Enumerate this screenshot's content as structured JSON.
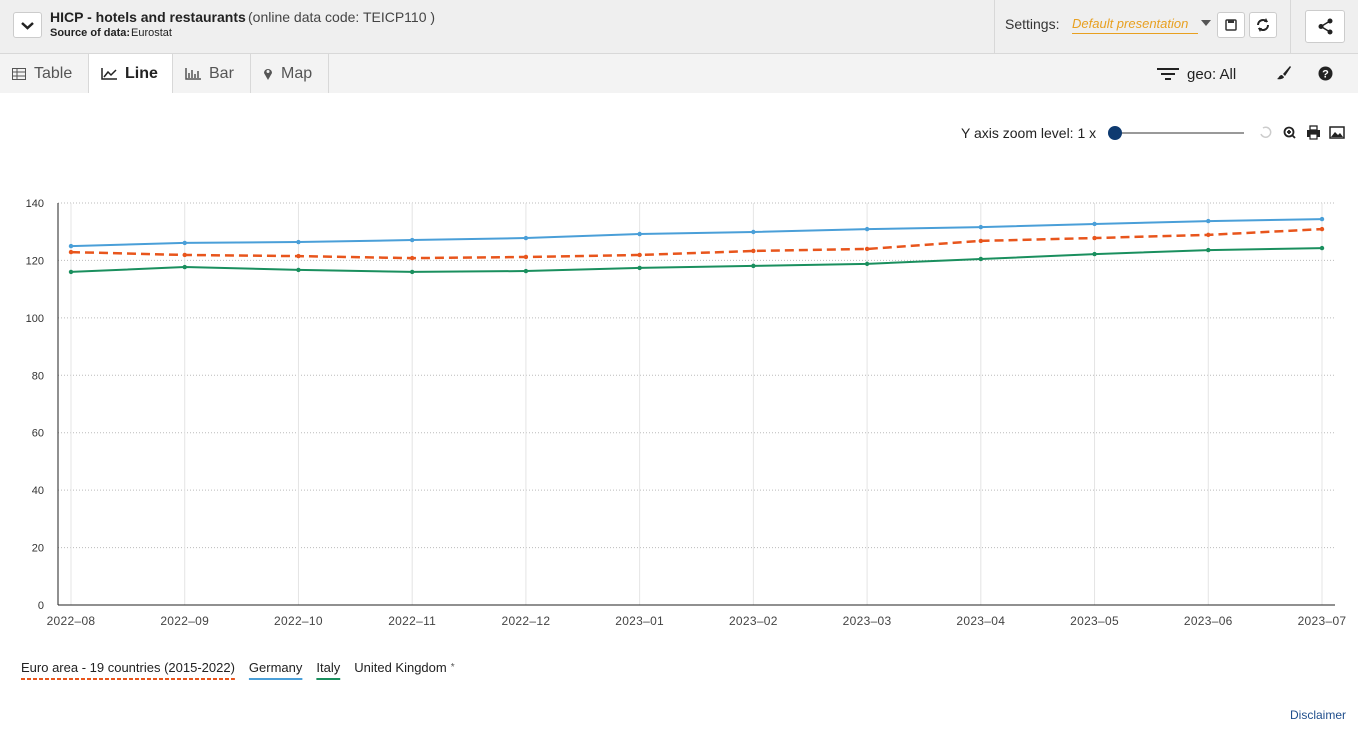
{
  "header": {
    "title": "HICP - hotels and restaurants",
    "code": "(online data code: TEICP110 )",
    "source_label": "Source of data:",
    "source": "Eurostat",
    "settings_label": "Settings:",
    "presentation": "Default presentation"
  },
  "tabs": [
    "Table",
    "Line",
    "Bar",
    "Map"
  ],
  "toolbar": {
    "filter": "geo: All",
    "zoom_label": "Y axis zoom level: 1 x"
  },
  "footer": {
    "disclaimer": "Disclaimer"
  },
  "chart_data": {
    "type": "line",
    "categories": [
      "2022–08",
      "2022–09",
      "2022–10",
      "2022–11",
      "2022–12",
      "2023–01",
      "2023–02",
      "2023–03",
      "2023–04",
      "2023–05",
      "2023–06",
      "2023–07"
    ],
    "series": [
      {
        "name": "Euro area - 19 countries (2015-2022)",
        "color": "#e8551c",
        "dashed": true,
        "values": [
          122.9,
          121.9,
          121.5,
          120.8,
          121.2,
          121.9,
          123.3,
          124.0,
          126.8,
          127.8,
          128.9,
          130.9
        ]
      },
      {
        "name": "Germany",
        "color": "#4a9fd8",
        "values": [
          125.0,
          126.1,
          126.4,
          127.1,
          127.8,
          129.2,
          129.9,
          130.9,
          131.6,
          132.7,
          133.7,
          134.4
        ]
      },
      {
        "name": "Italy",
        "color": "#1a8f5e",
        "values": [
          116.0,
          117.7,
          116.7,
          116.0,
          116.3,
          117.4,
          118.1,
          118.8,
          120.5,
          122.2,
          123.6,
          124.3
        ]
      },
      {
        "name": "United Kingdom",
        "values": [
          null,
          null,
          null,
          null,
          null,
          null,
          null,
          null,
          null,
          null,
          null,
          null
        ]
      }
    ],
    "legend_note": "*",
    "ylim": [
      0,
      140
    ],
    "yticks": [
      0,
      20,
      40,
      60,
      80,
      100,
      120,
      140
    ],
    "grid": true
  }
}
